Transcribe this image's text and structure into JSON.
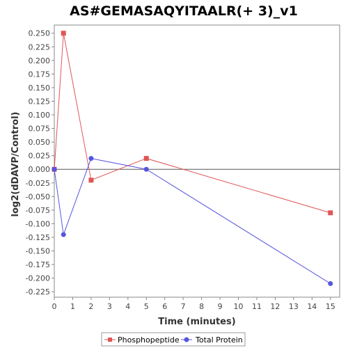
{
  "chart_data": {
    "type": "line",
    "title": "AS#GEMASAQYITAALR(+ 3)_v1",
    "xlabel": "Time (minutes)",
    "ylabel": "log2(dDAVP/Control)",
    "xlim": [
      0,
      15.5
    ],
    "ylim": [
      -0.235,
      0.265
    ],
    "x_ticks": [
      0,
      1,
      2,
      3,
      4,
      5,
      6,
      7,
      8,
      9,
      10,
      11,
      12,
      13,
      14,
      15
    ],
    "y_ticks": [
      -0.225,
      -0.2,
      -0.175,
      -0.15,
      -0.125,
      -0.1,
      -0.075,
      -0.05,
      -0.025,
      0.0,
      0.025,
      0.05,
      0.075,
      0.1,
      0.125,
      0.15,
      0.175,
      0.2,
      0.225,
      0.25
    ],
    "y_tick_labels": [
      "-0.225",
      "-0.200",
      "-0.175",
      "-0.150",
      "-0.125",
      "-0.100",
      "-0.075",
      "-0.050",
      "-0.025",
      "0.000",
      "0.025",
      "0.050",
      "0.075",
      "0.100",
      "0.125",
      "0.150",
      "0.175",
      "0.200",
      "0.225",
      "0.250"
    ],
    "zero_line": true,
    "grid": false,
    "legend_position": "bottom-center",
    "series": [
      {
        "name": "Phosphopeptide",
        "color": "#e05555",
        "marker": "square",
        "points": [
          [
            0,
            0.0
          ],
          [
            0.5,
            0.25
          ],
          [
            2,
            -0.02
          ],
          [
            5,
            0.02
          ],
          [
            15,
            -0.08
          ]
        ]
      },
      {
        "name": "Total Protein",
        "color": "#5555e0",
        "marker": "circle",
        "points": [
          [
            0,
            0.0
          ],
          [
            0.5,
            -0.12
          ],
          [
            2,
            0.02
          ],
          [
            5,
            0.0
          ],
          [
            15,
            -0.21
          ]
        ]
      }
    ]
  }
}
